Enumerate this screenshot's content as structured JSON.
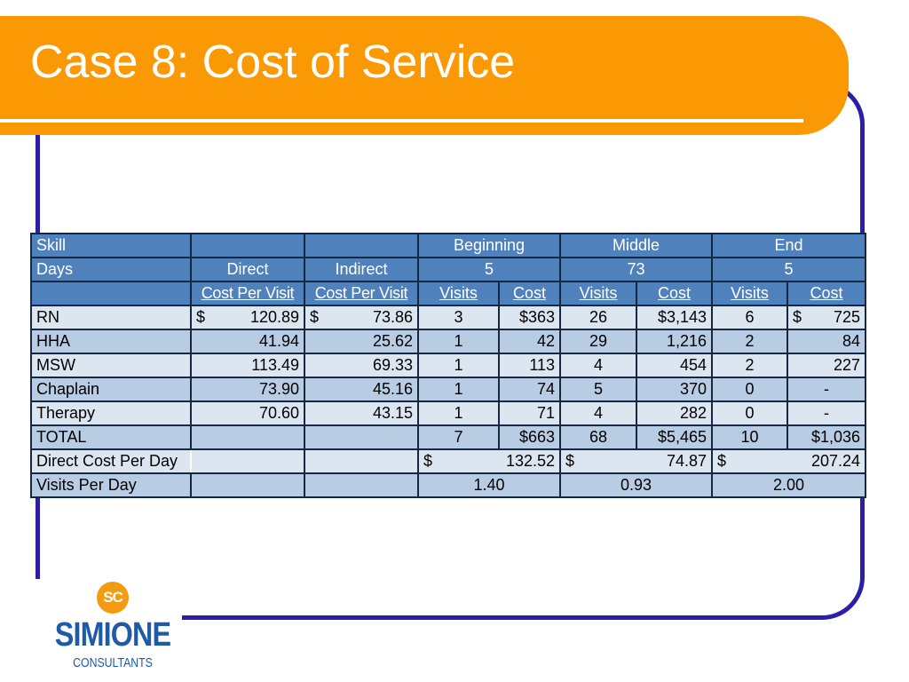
{
  "slide": {
    "title": "Case 8: Cost of Service",
    "colors": {
      "banner": "#fb9904",
      "frame": "#2a1eaa",
      "header": "#4f81bd",
      "row_dark": "#b8cce4",
      "row_light": "#dce6f1"
    }
  },
  "table": {
    "header1": {
      "skill": "Skill",
      "beginning": "Beginning",
      "middle": "Middle",
      "end": "End"
    },
    "header2": {
      "days": "Days",
      "direct": "Direct",
      "indirect": "Indirect",
      "beginning_days": "5",
      "middle_days": "73",
      "end_days": "5"
    },
    "header3": {
      "direct_cpv": "Cost Per Visit",
      "indirect_cpv": "Cost Per Visit",
      "visits": "Visits",
      "cost": "Cost"
    },
    "rows": [
      {
        "skill": "RN",
        "direct_sym": "$",
        "direct": "120.89",
        "indirect_sym": "$",
        "indirect": "73.86",
        "b_visits": "3",
        "b_cost": "$363",
        "m_visits": "26",
        "m_cost": "$3,143",
        "e_visits": "6",
        "e_cost_sym": "$",
        "e_cost": "725"
      },
      {
        "skill": "HHA",
        "direct": "41.94",
        "indirect": "25.62",
        "b_visits": "1",
        "b_cost": "42",
        "m_visits": "29",
        "m_cost": "1,216",
        "e_visits": "2",
        "e_cost": "84"
      },
      {
        "skill": "MSW",
        "direct": "113.49",
        "indirect": "69.33",
        "b_visits": "1",
        "b_cost": "113",
        "m_visits": "4",
        "m_cost": "454",
        "e_visits": "2",
        "e_cost": "227"
      },
      {
        "skill": "Chaplain",
        "direct": "73.90",
        "indirect": "45.16",
        "b_visits": "1",
        "b_cost": "74",
        "m_visits": "5",
        "m_cost": "370",
        "e_visits": "0",
        "e_cost": "-"
      },
      {
        "skill": "Therapy",
        "direct": "70.60",
        "indirect": "43.15",
        "b_visits": "1",
        "b_cost": "71",
        "m_visits": "4",
        "m_cost": "282",
        "e_visits": "0",
        "e_cost": "-"
      }
    ],
    "total": {
      "label": "TOTAL",
      "b_visits": "7",
      "b_cost": "$663",
      "m_visits": "68",
      "m_cost": "$5,465",
      "e_visits": "10",
      "e_cost": "$1,036"
    },
    "direct_cost_per_day": {
      "label": "Direct Cost Per Day",
      "sym": "$",
      "beginning": "132.52",
      "middle": "74.87",
      "end": "207.24"
    },
    "visits_per_day": {
      "label": "Visits Per Day",
      "beginning": "1.40",
      "middle": "0.93",
      "end": "2.00"
    }
  },
  "logo": {
    "mark": "SC",
    "name": "SIMIONE",
    "sub": "CONSULTANTS"
  }
}
